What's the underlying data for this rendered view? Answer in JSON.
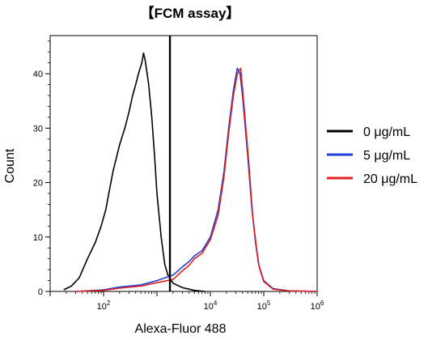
{
  "chart_data": {
    "type": "line",
    "title": "【FCM assay】",
    "xlabel": "Alexa-Fluor 488",
    "ylabel": "Count",
    "x_scale": "log",
    "xlim": [
      10,
      1000000
    ],
    "ylim": [
      0,
      47
    ],
    "y_ticks": [
      0,
      10,
      20,
      30,
      40
    ],
    "x_ticks": [
      {
        "value": 100,
        "base": "10",
        "exp": "2"
      },
      {
        "value": 10000,
        "base": "10",
        "exp": "4"
      },
      {
        "value": 100000,
        "base": "10",
        "exp": "5"
      },
      {
        "value": 1000000,
        "base": "10",
        "exp": "6"
      }
    ],
    "gate_x": 1750,
    "grid": false,
    "legend_position": "right",
    "series": [
      {
        "name": "0 μg/mL",
        "color": "#000000",
        "points": [
          [
            18,
            0.3
          ],
          [
            25,
            1
          ],
          [
            35,
            2.5
          ],
          [
            50,
            6
          ],
          [
            70,
            9
          ],
          [
            90,
            12
          ],
          [
            110,
            15
          ],
          [
            150,
            22
          ],
          [
            200,
            27
          ],
          [
            250,
            30
          ],
          [
            300,
            33
          ],
          [
            350,
            36
          ],
          [
            400,
            38
          ],
          [
            450,
            40
          ],
          [
            520,
            42
          ],
          [
            560,
            43.8
          ],
          [
            600,
            42.5
          ],
          [
            700,
            38
          ],
          [
            800,
            32
          ],
          [
            900,
            25
          ],
          [
            1000,
            18
          ],
          [
            1200,
            10
          ],
          [
            1400,
            5
          ],
          [
            1600,
            3
          ],
          [
            2000,
            1.5
          ],
          [
            3000,
            0.7
          ],
          [
            5000,
            0.2
          ],
          [
            8000,
            0
          ]
        ]
      },
      {
        "name": "5 μg/mL",
        "color": "#1f3fd6",
        "points": [
          [
            30,
            0
          ],
          [
            100,
            0.3
          ],
          [
            200,
            0.8
          ],
          [
            500,
            1.2
          ],
          [
            1000,
            2
          ],
          [
            2000,
            3
          ],
          [
            3000,
            4.5
          ],
          [
            4000,
            5.5
          ],
          [
            5000,
            6.5
          ],
          [
            7000,
            7.5
          ],
          [
            10000,
            10
          ],
          [
            14000,
            15
          ],
          [
            18000,
            22
          ],
          [
            22000,
            30
          ],
          [
            27000,
            37
          ],
          [
            32000,
            41
          ],
          [
            36000,
            40
          ],
          [
            40000,
            36
          ],
          [
            50000,
            25
          ],
          [
            60000,
            15
          ],
          [
            70000,
            9
          ],
          [
            80000,
            5
          ],
          [
            100000,
            2
          ],
          [
            150000,
            0.5
          ],
          [
            300000,
            0.1
          ],
          [
            1000000,
            0
          ]
        ]
      },
      {
        "name": "20 μg/mL",
        "color": "#e02020",
        "points": [
          [
            30,
            0
          ],
          [
            100,
            0.2
          ],
          [
            200,
            0.6
          ],
          [
            500,
            1
          ],
          [
            1000,
            1.6
          ],
          [
            2000,
            2.2
          ],
          [
            3000,
            3.8
          ],
          [
            4000,
            4.8
          ],
          [
            5000,
            6
          ],
          [
            7000,
            7
          ],
          [
            10000,
            9.5
          ],
          [
            14000,
            14
          ],
          [
            18000,
            21
          ],
          [
            22000,
            29
          ],
          [
            27000,
            36
          ],
          [
            32000,
            40
          ],
          [
            37000,
            41
          ],
          [
            42000,
            35
          ],
          [
            52000,
            24
          ],
          [
            62000,
            14
          ],
          [
            72000,
            8.5
          ],
          [
            82000,
            4.5
          ],
          [
            100000,
            1.8
          ],
          [
            150000,
            0.4
          ],
          [
            300000,
            0.1
          ],
          [
            1000000,
            0
          ]
        ]
      }
    ]
  }
}
